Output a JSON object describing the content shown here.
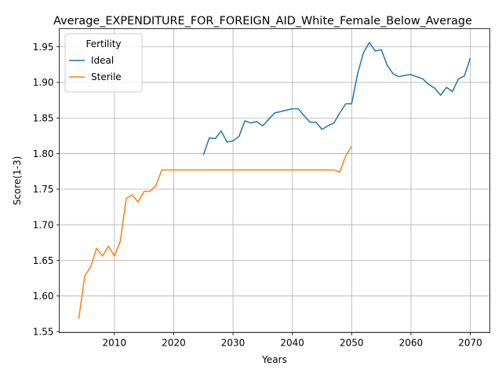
{
  "chart_data": {
    "type": "line",
    "title": "Average_EXPENDITURE_FOR_FOREIGN_AID_White_Female_Below_Average",
    "xlabel": "Years",
    "ylabel": "Score(1-3)",
    "xlim": [
      2000.7,
      2073.3
    ],
    "ylim": [
      1.5485,
      1.9755
    ],
    "xticks": [
      2010,
      2020,
      2030,
      2040,
      2050,
      2060,
      2070
    ],
    "yticks": [
      1.55,
      1.6,
      1.65,
      1.7,
      1.75,
      1.8,
      1.85,
      1.9,
      1.95
    ],
    "grid": true,
    "legend": {
      "title": "Fertility",
      "location": "upper-left"
    },
    "series": [
      {
        "name": "Ideal",
        "color": "#1f77b4",
        "x": [
          2025,
          2026,
          2027,
          2028,
          2029,
          2030,
          2031,
          2032,
          2033,
          2034,
          2035,
          2036,
          2037,
          2038,
          2039,
          2040,
          2041,
          2042,
          2043,
          2044,
          2045,
          2046,
          2047,
          2048,
          2049,
          2050,
          2051,
          2052,
          2053,
          2054,
          2055,
          2056,
          2057,
          2058,
          2059,
          2060,
          2061,
          2062,
          2063,
          2064,
          2065,
          2066,
          2067,
          2068,
          2069,
          2070
        ],
        "y": [
          1.798,
          1.822,
          1.821,
          1.832,
          1.816,
          1.818,
          1.824,
          1.846,
          1.843,
          1.845,
          1.839,
          1.848,
          1.857,
          1.859,
          1.861,
          1.863,
          1.863,
          1.853,
          1.844,
          1.844,
          1.834,
          1.839,
          1.843,
          1.857,
          1.87,
          1.87,
          1.912,
          1.942,
          1.956,
          1.944,
          1.946,
          1.924,
          1.912,
          1.908,
          1.91,
          1.911,
          1.908,
          1.905,
          1.897,
          1.892,
          1.882,
          1.893,
          1.887,
          1.905,
          1.909,
          1.934
        ]
      },
      {
        "name": "Sterile",
        "color": "#ff7f0e",
        "x": [
          2004,
          2005,
          2006,
          2007,
          2008,
          2009,
          2010,
          2011,
          2012,
          2013,
          2014,
          2015,
          2016,
          2017,
          2018,
          2019,
          2020,
          2021,
          2022,
          2023,
          2024,
          2025,
          2026,
          2027,
          2028,
          2029,
          2030,
          2031,
          2032,
          2033,
          2034,
          2035,
          2036,
          2037,
          2038,
          2039,
          2040,
          2041,
          2042,
          2043,
          2044,
          2045,
          2046,
          2047,
          2048,
          2049,
          2050
        ],
        "y": [
          1.568,
          1.628,
          1.641,
          1.667,
          1.656,
          1.67,
          1.656,
          1.677,
          1.737,
          1.742,
          1.732,
          1.747,
          1.747,
          1.755,
          1.777,
          1.777,
          1.777,
          1.777,
          1.777,
          1.777,
          1.777,
          1.777,
          1.777,
          1.777,
          1.777,
          1.777,
          1.777,
          1.777,
          1.777,
          1.777,
          1.777,
          1.777,
          1.777,
          1.777,
          1.777,
          1.777,
          1.777,
          1.777,
          1.777,
          1.777,
          1.777,
          1.777,
          1.777,
          1.777,
          1.774,
          1.797,
          1.81
        ]
      }
    ]
  }
}
